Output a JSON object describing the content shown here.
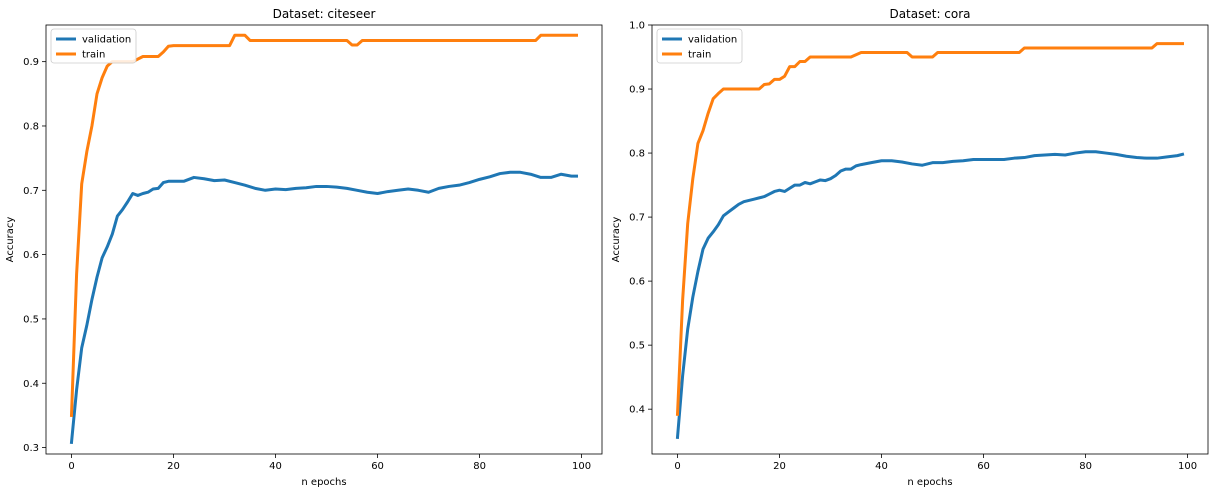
{
  "chart_data": [
    {
      "type": "line",
      "title": "Dataset: citeseer",
      "xlabel": "n epochs",
      "ylabel": "Accuracy",
      "xlim": [
        -5,
        104
      ],
      "ylim": [
        0.29,
        0.957
      ],
      "xticks": [
        0,
        20,
        40,
        60,
        80,
        100
      ],
      "yticks": [
        0.3,
        0.4,
        0.5,
        0.6,
        0.7,
        0.8,
        0.9
      ],
      "grid": false,
      "legend": "top-left",
      "series": [
        {
          "name": "validation",
          "color": "#1f77b4",
          "x": [
            0,
            1,
            2,
            3,
            4,
            5,
            6,
            7,
            8,
            9,
            10,
            11,
            12,
            13,
            14,
            15,
            16,
            17,
            18,
            19,
            20,
            22,
            24,
            26,
            28,
            30,
            32,
            34,
            36,
            38,
            40,
            42,
            44,
            46,
            48,
            50,
            52,
            54,
            56,
            58,
            60,
            62,
            64,
            66,
            68,
            70,
            72,
            74,
            76,
            78,
            80,
            82,
            84,
            86,
            88,
            90,
            92,
            94,
            96,
            98,
            99
          ],
          "y": [
            0.308,
            0.39,
            0.455,
            0.49,
            0.53,
            0.565,
            0.595,
            0.612,
            0.632,
            0.66,
            0.67,
            0.682,
            0.695,
            0.692,
            0.695,
            0.697,
            0.702,
            0.703,
            0.712,
            0.714,
            0.714,
            0.714,
            0.72,
            0.718,
            0.715,
            0.716,
            0.712,
            0.708,
            0.703,
            0.7,
            0.702,
            0.701,
            0.703,
            0.704,
            0.706,
            0.706,
            0.705,
            0.703,
            0.7,
            0.697,
            0.695,
            0.698,
            0.7,
            0.702,
            0.7,
            0.697,
            0.703,
            0.706,
            0.708,
            0.712,
            0.717,
            0.721,
            0.726,
            0.728,
            0.728,
            0.725,
            0.72,
            0.72,
            0.725,
            0.722,
            0.722
          ]
        },
        {
          "name": "train",
          "color": "#ff7f0e",
          "x": [
            0,
            1,
            2,
            3,
            4,
            5,
            6,
            7,
            8,
            9,
            10,
            12,
            14,
            16,
            17,
            18,
            19,
            20,
            22,
            24,
            26,
            28,
            30,
            31,
            32,
            33,
            34,
            35,
            36,
            38,
            40,
            44,
            48,
            52,
            54,
            55,
            56,
            57,
            58,
            60,
            64,
            70,
            76,
            82,
            88,
            90,
            91,
            92,
            94,
            96,
            99
          ],
          "y": [
            0.35,
            0.57,
            0.71,
            0.76,
            0.8,
            0.85,
            0.875,
            0.893,
            0.9,
            0.9,
            0.9,
            0.9,
            0.908,
            0.908,
            0.908,
            0.915,
            0.924,
            0.925,
            0.925,
            0.925,
            0.925,
            0.925,
            0.925,
            0.925,
            0.941,
            0.941,
            0.941,
            0.933,
            0.933,
            0.933,
            0.933,
            0.933,
            0.933,
            0.933,
            0.933,
            0.926,
            0.926,
            0.933,
            0.933,
            0.933,
            0.933,
            0.933,
            0.933,
            0.933,
            0.933,
            0.933,
            0.933,
            0.941,
            0.941,
            0.941,
            0.941
          ]
        }
      ]
    },
    {
      "type": "line",
      "title": "Dataset: cora",
      "xlabel": "n epochs",
      "ylabel": "Accuracy",
      "xlim": [
        -5,
        104
      ],
      "ylim": [
        0.33,
        1.0
      ],
      "xticks": [
        0,
        20,
        40,
        60,
        80,
        100
      ],
      "yticks": [
        0.4,
        0.5,
        0.6,
        0.7,
        0.8,
        0.9,
        1.0
      ],
      "grid": false,
      "legend": "top-left",
      "series": [
        {
          "name": "validation",
          "color": "#1f77b4",
          "x": [
            0,
            1,
            2,
            3,
            4,
            5,
            6,
            7,
            8,
            9,
            10,
            11,
            12,
            13,
            14,
            15,
            16,
            17,
            18,
            19,
            20,
            21,
            22,
            23,
            24,
            25,
            26,
            27,
            28,
            29,
            30,
            31,
            32,
            33,
            34,
            35,
            36,
            38,
            40,
            42,
            44,
            46,
            48,
            50,
            52,
            54,
            56,
            58,
            60,
            62,
            64,
            66,
            68,
            70,
            72,
            74,
            76,
            78,
            80,
            82,
            84,
            86,
            88,
            90,
            92,
            94,
            96,
            98,
            99
          ],
          "y": [
            0.356,
            0.452,
            0.525,
            0.575,
            0.615,
            0.65,
            0.667,
            0.677,
            0.688,
            0.702,
            0.708,
            0.714,
            0.72,
            0.724,
            0.726,
            0.728,
            0.73,
            0.732,
            0.736,
            0.74,
            0.742,
            0.74,
            0.745,
            0.75,
            0.75,
            0.754,
            0.752,
            0.755,
            0.758,
            0.757,
            0.76,
            0.765,
            0.772,
            0.775,
            0.775,
            0.78,
            0.782,
            0.785,
            0.788,
            0.788,
            0.786,
            0.783,
            0.781,
            0.785,
            0.785,
            0.787,
            0.788,
            0.79,
            0.79,
            0.79,
            0.79,
            0.792,
            0.793,
            0.796,
            0.797,
            0.798,
            0.797,
            0.8,
            0.802,
            0.802,
            0.8,
            0.798,
            0.795,
            0.793,
            0.792,
            0.792,
            0.794,
            0.796,
            0.798
          ]
        },
        {
          "name": "train",
          "color": "#ff7f0e",
          "x": [
            0,
            1,
            2,
            3,
            4,
            5,
            6,
            7,
            8,
            9,
            10,
            12,
            14,
            16,
            17,
            18,
            19,
            20,
            21,
            22,
            23,
            24,
            25,
            26,
            28,
            30,
            32,
            34,
            36,
            38,
            40,
            42,
            44,
            45,
            46,
            48,
            50,
            51,
            52,
            56,
            60,
            66,
            67,
            68,
            72,
            78,
            84,
            90,
            93,
            94,
            96,
            99
          ],
          "y": [
            0.392,
            0.57,
            0.69,
            0.76,
            0.815,
            0.835,
            0.862,
            0.885,
            0.893,
            0.9,
            0.9,
            0.9,
            0.9,
            0.9,
            0.907,
            0.908,
            0.915,
            0.915,
            0.92,
            0.935,
            0.935,
            0.943,
            0.943,
            0.95,
            0.95,
            0.95,
            0.95,
            0.95,
            0.957,
            0.957,
            0.957,
            0.957,
            0.957,
            0.957,
            0.95,
            0.95,
            0.95,
            0.957,
            0.957,
            0.957,
            0.957,
            0.957,
            0.957,
            0.964,
            0.964,
            0.964,
            0.964,
            0.964,
            0.964,
            0.971,
            0.971,
            0.971
          ]
        }
      ]
    }
  ]
}
